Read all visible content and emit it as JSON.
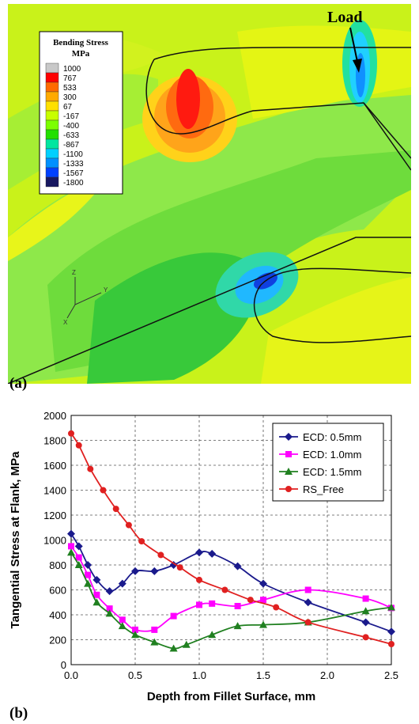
{
  "panel_a": {
    "label": "(a)",
    "legend": {
      "title_line1": "Bending Stress",
      "title_line2": "MPa",
      "levels": [
        "1000",
        "767",
        "533",
        "300",
        "67",
        "-167",
        "-400",
        "-633",
        "-867",
        "-1100",
        "-1333",
        "-1567",
        "-1800"
      ],
      "colors": [
        "#c8c8c8",
        "#ff0000",
        "#ff6a00",
        "#ffaa00",
        "#ffe000",
        "#c8ff00",
        "#7cff00",
        "#22e000",
        "#00e6a0",
        "#00d0ff",
        "#0090ff",
        "#0040ff",
        "#181860"
      ]
    },
    "load_label": "Load",
    "axes": {
      "z": "Z",
      "y": "Y",
      "x": "X"
    }
  },
  "panel_b": {
    "label": "(b)"
  },
  "chart_data": {
    "type": "line",
    "xlabel": "Depth from Fillet Surface, mm",
    "ylabel": "Tangential Stress at Flank, MPa",
    "xlim": [
      0,
      2.5
    ],
    "ylim": [
      0,
      2000
    ],
    "xticks": [
      "0.0",
      "0.5",
      "1.0",
      "1.5",
      "2.0",
      "2.5"
    ],
    "yticks": [
      "0",
      "200",
      "400",
      "600",
      "800",
      "1000",
      "1200",
      "1400",
      "1600",
      "1800",
      "2000"
    ],
    "grid": true,
    "legend_position": "top-right",
    "series": [
      {
        "name": "ECD: 0.5mm",
        "color": "#1a1a8c",
        "marker": "diamond",
        "x": [
          0.0,
          0.06,
          0.13,
          0.2,
          0.3,
          0.4,
          0.5,
          0.65,
          0.8,
          1.0,
          1.1,
          1.3,
          1.5,
          1.85,
          2.3,
          2.5
        ],
        "y": [
          1050,
          950,
          800,
          680,
          590,
          650,
          750,
          750,
          800,
          900,
          890,
          790,
          650,
          500,
          340,
          265
        ]
      },
      {
        "name": "ECD: 1.0mm",
        "color": "#ff00ff",
        "marker": "square",
        "x": [
          0.0,
          0.06,
          0.13,
          0.2,
          0.3,
          0.4,
          0.5,
          0.65,
          0.8,
          1.0,
          1.1,
          1.3,
          1.5,
          1.85,
          2.3,
          2.5
        ],
        "y": [
          950,
          860,
          720,
          560,
          450,
          360,
          280,
          280,
          390,
          480,
          490,
          470,
          520,
          600,
          530,
          455
        ]
      },
      {
        "name": "ECD: 1.5mm",
        "color": "#208020",
        "marker": "triangle",
        "x": [
          0.0,
          0.06,
          0.13,
          0.2,
          0.3,
          0.4,
          0.5,
          0.65,
          0.8,
          0.9,
          1.1,
          1.3,
          1.5,
          1.85,
          2.3,
          2.5
        ],
        "y": [
          900,
          800,
          650,
          500,
          410,
          310,
          240,
          180,
          130,
          160,
          240,
          310,
          320,
          340,
          430,
          460
        ]
      },
      {
        "name": "RS_Free",
        "color": "#e02020",
        "marker": "circle",
        "x": [
          0.0,
          0.06,
          0.15,
          0.25,
          0.35,
          0.45,
          0.55,
          0.7,
          0.85,
          1.0,
          1.2,
          1.4,
          1.6,
          1.85,
          2.3,
          2.5
        ],
        "y": [
          1855,
          1760,
          1570,
          1400,
          1250,
          1120,
          990,
          880,
          780,
          680,
          600,
          520,
          460,
          340,
          220,
          165
        ]
      }
    ]
  }
}
